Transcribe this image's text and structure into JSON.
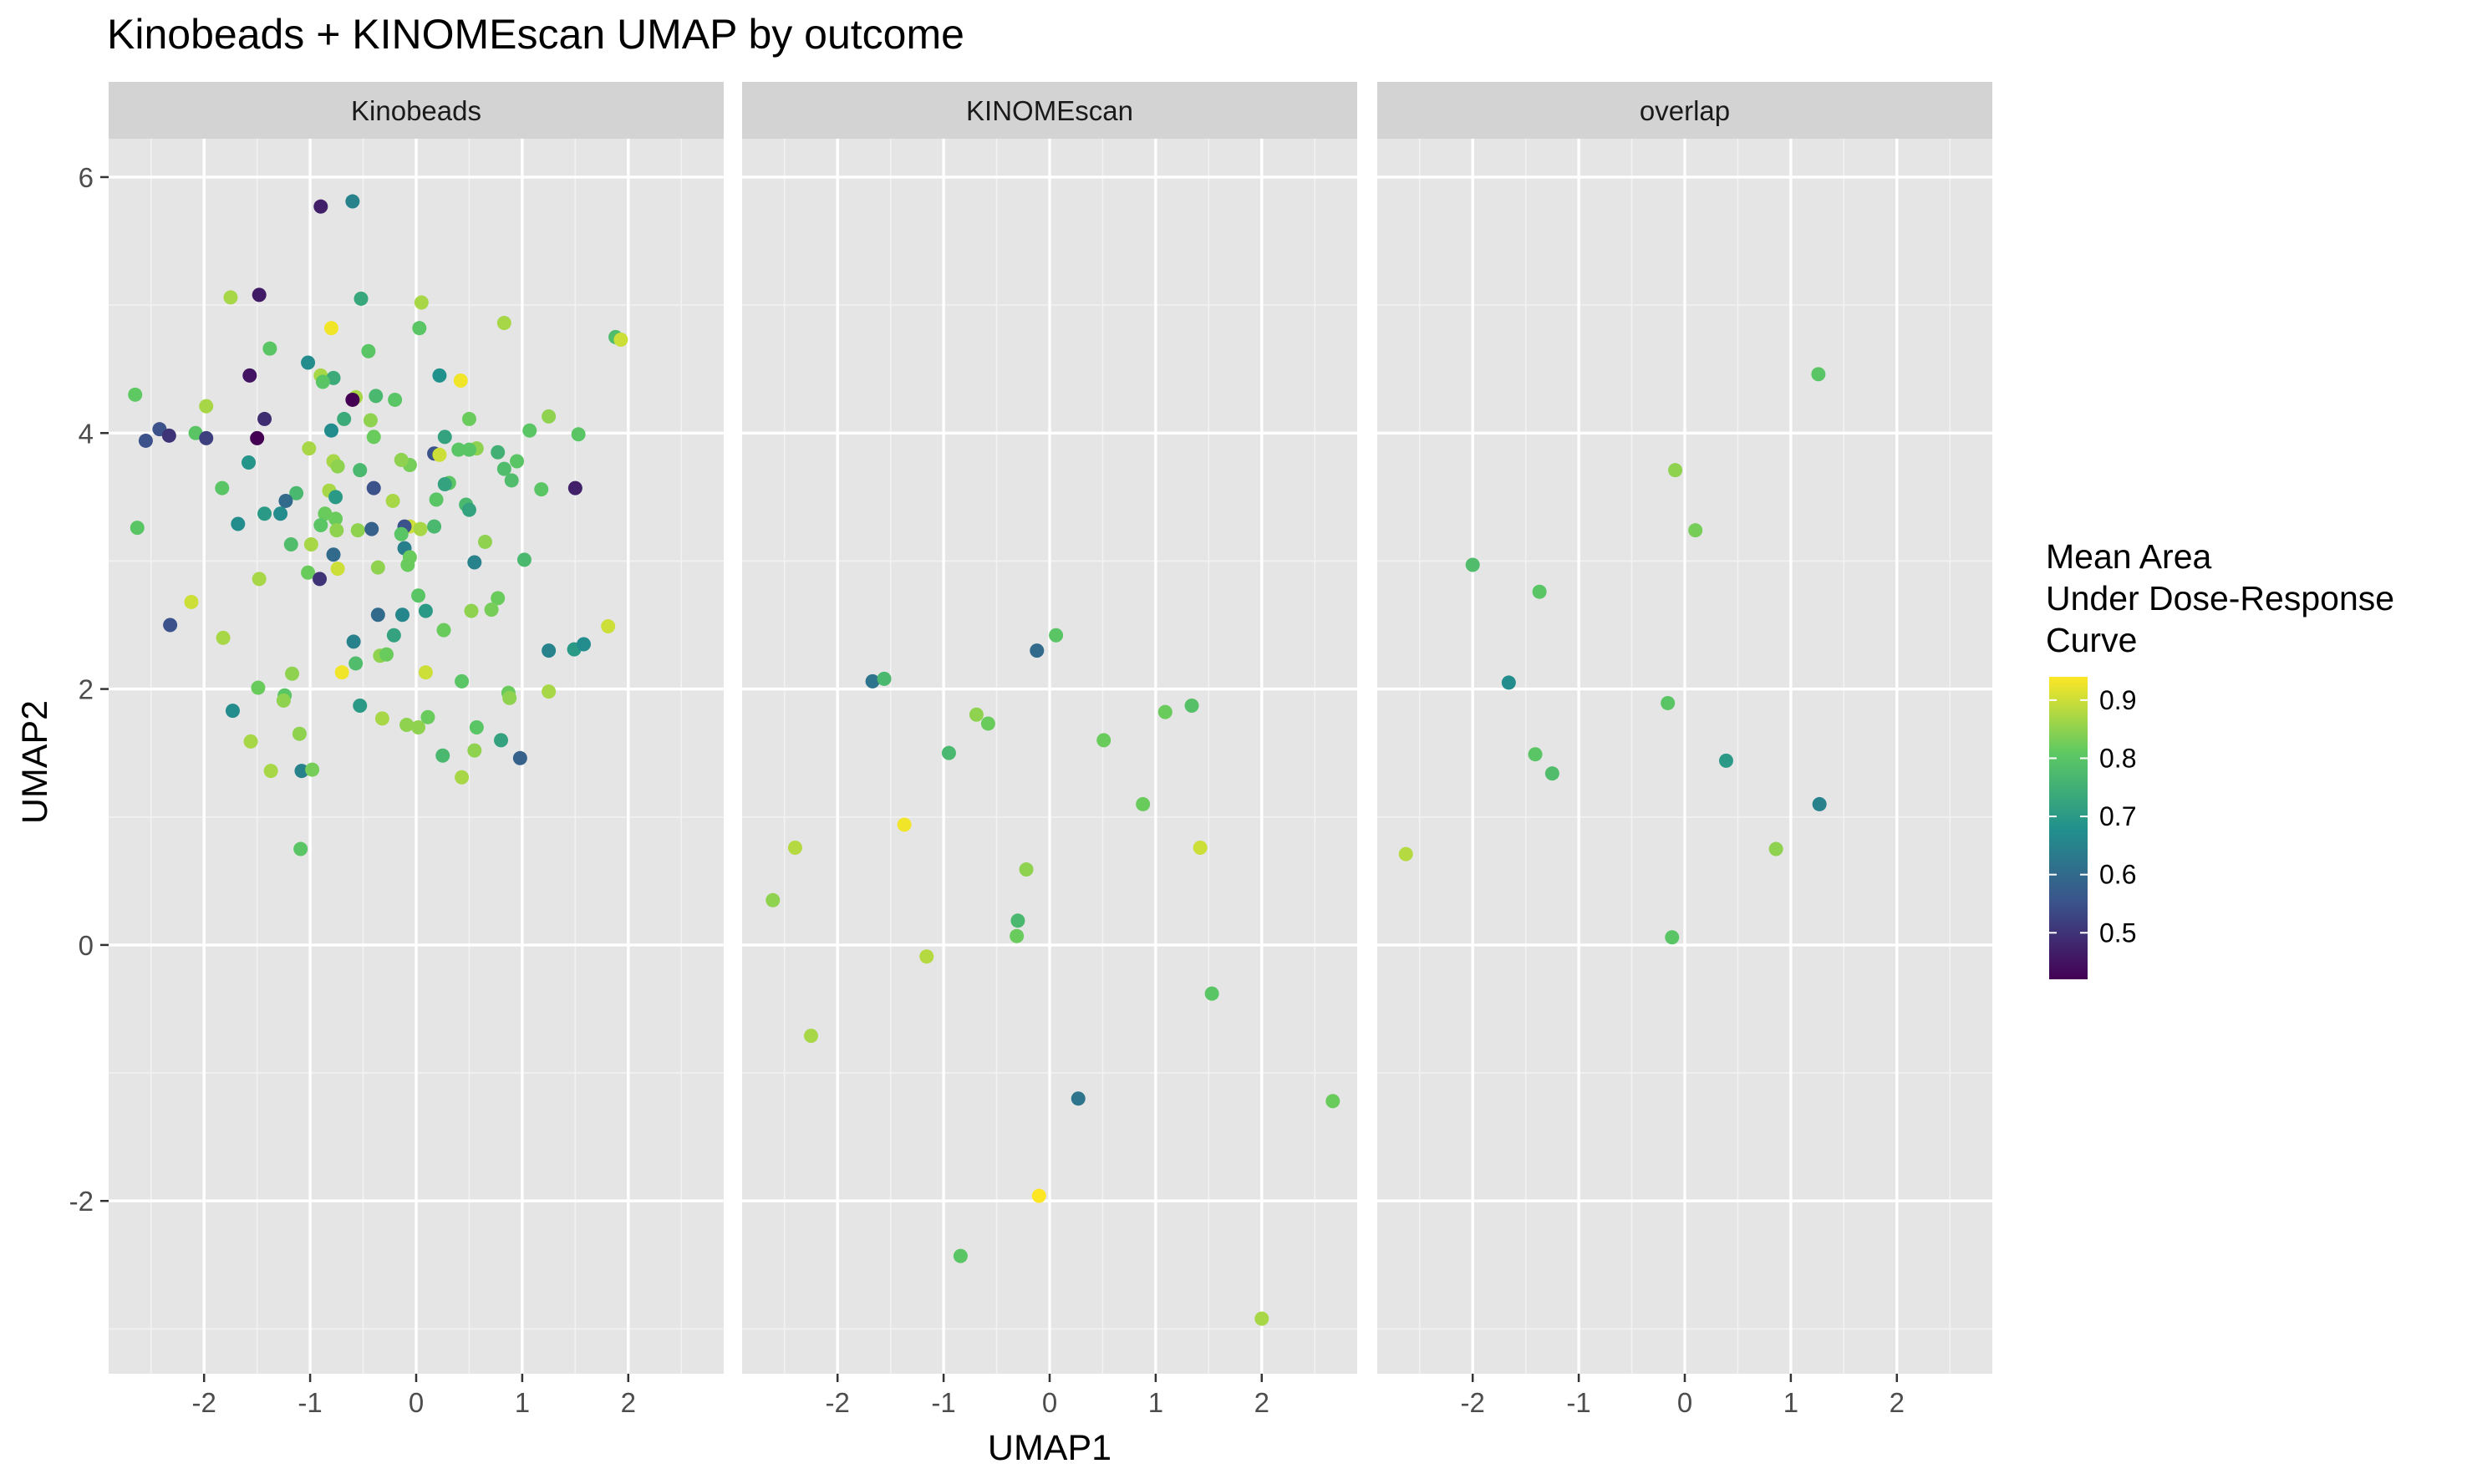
{
  "chart_data": {
    "type": "scatter",
    "title": "Kinobeads + KINOMEscan UMAP by outcome",
    "xlabel": "UMAP1",
    "ylabel": "UMAP2",
    "xlim": [
      -2.9,
      2.9
    ],
    "ylim": [
      -3.35,
      6.3
    ],
    "x_ticks": [
      -2,
      -1,
      0,
      1,
      2
    ],
    "x_tick_labels": [
      "-2",
      "-1",
      "0",
      "1",
      "2"
    ],
    "y_ticks": [
      -2,
      0,
      2,
      4,
      6
    ],
    "y_tick_labels": [
      "-2",
      "0",
      "2",
      "4",
      "6"
    ],
    "grid": true,
    "background": "#e5e5e5",
    "strip_color": "#d3d3d3",
    "legend": {
      "title_lines": [
        "Mean Area",
        "Under Dose-Response",
        "Curve"
      ],
      "position": "right",
      "colormap": "viridis",
      "range": [
        0.42,
        0.94
      ],
      "ticks": [
        0.5,
        0.6,
        0.7,
        0.8,
        0.9
      ],
      "tick_labels": [
        "0.5",
        "0.6",
        "0.7",
        "0.8",
        "0.9"
      ]
    },
    "facets": [
      {
        "name": "Kinobeads",
        "points": [
          [
            -0.9,
            5.77,
            0.47
          ],
          [
            -0.6,
            5.81,
            0.65
          ],
          [
            -1.48,
            5.08,
            0.46
          ],
          [
            -1.75,
            5.06,
            0.87
          ],
          [
            -0.52,
            5.05,
            0.73
          ],
          [
            0.05,
            5.02,
            0.87
          ],
          [
            0.83,
            4.86,
            0.87
          ],
          [
            -0.8,
            4.82,
            0.93
          ],
          [
            0.03,
            4.82,
            0.8
          ],
          [
            1.88,
            4.75,
            0.78
          ],
          [
            1.93,
            4.73,
            0.9
          ],
          [
            -1.38,
            4.66,
            0.8
          ],
          [
            -0.45,
            4.64,
            0.8
          ],
          [
            -1.02,
            4.55,
            0.67
          ],
          [
            -1.57,
            4.45,
            0.45
          ],
          [
            -0.9,
            4.45,
            0.87
          ],
          [
            -0.78,
            4.43,
            0.74
          ],
          [
            -0.88,
            4.4,
            0.8
          ],
          [
            0.22,
            4.45,
            0.68
          ],
          [
            0.42,
            4.41,
            0.93
          ],
          [
            -2.65,
            4.3,
            0.81
          ],
          [
            -0.57,
            4.28,
            0.87
          ],
          [
            -0.38,
            4.29,
            0.77
          ],
          [
            -0.2,
            4.26,
            0.8
          ],
          [
            -0.6,
            4.26,
            0.42
          ],
          [
            -1.98,
            4.21,
            0.87
          ],
          [
            -1.43,
            4.11,
            0.49
          ],
          [
            -0.68,
            4.11,
            0.74
          ],
          [
            -0.43,
            4.1,
            0.85
          ],
          [
            0.5,
            4.11,
            0.82
          ],
          [
            1.25,
            4.13,
            0.85
          ],
          [
            -2.42,
            4.03,
            0.55
          ],
          [
            -2.08,
            4.0,
            0.8
          ],
          [
            -0.8,
            4.02,
            0.67
          ],
          [
            1.07,
            4.02,
            0.8
          ],
          [
            1.53,
            3.99,
            0.8
          ],
          [
            -2.55,
            3.94,
            0.55
          ],
          [
            -2.33,
            3.98,
            0.5
          ],
          [
            -1.98,
            3.96,
            0.52
          ],
          [
            -1.5,
            3.96,
            0.42
          ],
          [
            -0.4,
            3.97,
            0.82
          ],
          [
            0.27,
            3.97,
            0.72
          ],
          [
            -1.01,
            3.88,
            0.87
          ],
          [
            0.4,
            3.87,
            0.8
          ],
          [
            0.57,
            3.88,
            0.85
          ],
          [
            0.5,
            3.87,
            0.8
          ],
          [
            0.77,
            3.85,
            0.75
          ],
          [
            0.17,
            3.84,
            0.55
          ],
          [
            0.22,
            3.83,
            0.9
          ],
          [
            -0.78,
            3.78,
            0.87
          ],
          [
            -0.06,
            3.75,
            0.83
          ],
          [
            -0.14,
            3.79,
            0.85
          ],
          [
            0.95,
            3.78,
            0.8
          ],
          [
            0.83,
            3.72,
            0.78
          ],
          [
            -0.74,
            3.74,
            0.85
          ],
          [
            -0.53,
            3.71,
            0.77
          ],
          [
            -1.58,
            3.77,
            0.69
          ],
          [
            0.31,
            3.61,
            0.8
          ],
          [
            0.27,
            3.6,
            0.72
          ],
          [
            -0.82,
            3.55,
            0.87
          ],
          [
            0.9,
            3.63,
            0.78
          ],
          [
            1.18,
            3.56,
            0.8
          ],
          [
            1.5,
            3.57,
            0.47
          ],
          [
            -1.83,
            3.57,
            0.8
          ],
          [
            -1.13,
            3.53,
            0.77
          ],
          [
            -0.4,
            3.57,
            0.55
          ],
          [
            0.19,
            3.48,
            0.8
          ],
          [
            -1.23,
            3.47,
            0.6
          ],
          [
            -0.76,
            3.5,
            0.7
          ],
          [
            -0.22,
            3.47,
            0.87
          ],
          [
            0.47,
            3.44,
            0.77
          ],
          [
            0.5,
            3.4,
            0.72
          ],
          [
            -1.43,
            3.37,
            0.7
          ],
          [
            -1.28,
            3.37,
            0.67
          ],
          [
            -0.86,
            3.37,
            0.82
          ],
          [
            -0.76,
            3.33,
            0.82
          ],
          [
            -2.63,
            3.26,
            0.8
          ],
          [
            -1.68,
            3.29,
            0.67
          ],
          [
            -0.9,
            3.28,
            0.8
          ],
          [
            -0.75,
            3.24,
            0.85
          ],
          [
            -0.06,
            3.27,
            0.9
          ],
          [
            0.04,
            3.25,
            0.87
          ],
          [
            0.17,
            3.27,
            0.77
          ],
          [
            -0.55,
            3.24,
            0.85
          ],
          [
            -0.42,
            3.25,
            0.58
          ],
          [
            -0.11,
            3.27,
            0.55
          ],
          [
            -0.14,
            3.21,
            0.8
          ],
          [
            0.65,
            3.15,
            0.85
          ],
          [
            -1.18,
            3.13,
            0.78
          ],
          [
            -0.99,
            3.13,
            0.87
          ],
          [
            -0.11,
            3.1,
            0.64
          ],
          [
            -0.78,
            3.05,
            0.6
          ],
          [
            -0.06,
            3.03,
            0.82
          ],
          [
            -0.36,
            2.95,
            0.85
          ],
          [
            -0.08,
            2.97,
            0.82
          ],
          [
            0.55,
            2.99,
            0.65
          ],
          [
            1.02,
            3.01,
            0.77
          ],
          [
            -1.48,
            2.86,
            0.87
          ],
          [
            -1.02,
            2.91,
            0.82
          ],
          [
            -0.91,
            2.86,
            0.5
          ],
          [
            -0.74,
            2.94,
            0.9
          ],
          [
            0.02,
            2.73,
            0.8
          ],
          [
            0.77,
            2.71,
            0.82
          ],
          [
            -2.12,
            2.68,
            0.9
          ],
          [
            -0.36,
            2.58,
            0.6
          ],
          [
            -0.13,
            2.58,
            0.66
          ],
          [
            0.09,
            2.61,
            0.7
          ],
          [
            0.52,
            2.61,
            0.85
          ],
          [
            0.71,
            2.62,
            0.83
          ],
          [
            -2.32,
            2.5,
            0.55
          ],
          [
            -1.82,
            2.4,
            0.87
          ],
          [
            -0.21,
            2.42,
            0.72
          ],
          [
            0.26,
            2.46,
            0.82
          ],
          [
            1.81,
            2.49,
            0.9
          ],
          [
            -0.59,
            2.37,
            0.65
          ],
          [
            -0.34,
            2.26,
            0.85
          ],
          [
            -0.28,
            2.27,
            0.82
          ],
          [
            -0.57,
            2.2,
            0.78
          ],
          [
            1.25,
            2.3,
            0.65
          ],
          [
            1.49,
            2.31,
            0.7
          ],
          [
            1.58,
            2.35,
            0.67
          ],
          [
            -0.7,
            2.13,
            0.93
          ],
          [
            0.09,
            2.13,
            0.9
          ],
          [
            -1.17,
            2.12,
            0.85
          ],
          [
            -1.49,
            2.01,
            0.82
          ],
          [
            -1.24,
            1.95,
            0.8
          ],
          [
            -1.25,
            1.91,
            0.85
          ],
          [
            0.43,
            2.06,
            0.8
          ],
          [
            0.87,
            1.97,
            0.82
          ],
          [
            0.88,
            1.93,
            0.85
          ],
          [
            1.25,
            1.98,
            0.87
          ],
          [
            -1.73,
            1.83,
            0.67
          ],
          [
            -0.53,
            1.87,
            0.7
          ],
          [
            0.11,
            1.78,
            0.82
          ],
          [
            -0.32,
            1.77,
            0.87
          ],
          [
            -0.09,
            1.72,
            0.85
          ],
          [
            0.02,
            1.7,
            0.85
          ],
          [
            0.57,
            1.7,
            0.8
          ],
          [
            -1.1,
            1.65,
            0.85
          ],
          [
            -1.56,
            1.59,
            0.87
          ],
          [
            0.8,
            1.6,
            0.72
          ],
          [
            0.55,
            1.52,
            0.85
          ],
          [
            0.25,
            1.48,
            0.77
          ],
          [
            0.98,
            1.46,
            0.58
          ],
          [
            -1.37,
            1.36,
            0.87
          ],
          [
            -1.08,
            1.36,
            0.65
          ],
          [
            -0.98,
            1.37,
            0.83
          ],
          [
            0.43,
            1.31,
            0.87
          ],
          [
            -1.09,
            0.75,
            0.8
          ]
        ]
      },
      {
        "name": "KINOMEscan",
        "points": [
          [
            0.06,
            2.42,
            0.8
          ],
          [
            -0.12,
            2.3,
            0.6
          ],
          [
            -1.67,
            2.06,
            0.62
          ],
          [
            -1.56,
            2.08,
            0.77
          ],
          [
            1.34,
            1.87,
            0.79
          ],
          [
            1.09,
            1.82,
            0.82
          ],
          [
            -0.69,
            1.8,
            0.85
          ],
          [
            -0.58,
            1.73,
            0.82
          ],
          [
            0.51,
            1.6,
            0.82
          ],
          [
            -0.95,
            1.5,
            0.77
          ],
          [
            0.88,
            1.1,
            0.82
          ],
          [
            -1.37,
            0.94,
            0.93
          ],
          [
            -2.4,
            0.76,
            0.88
          ],
          [
            1.42,
            0.76,
            0.9
          ],
          [
            -0.22,
            0.59,
            0.85
          ],
          [
            -2.61,
            0.35,
            0.85
          ],
          [
            -0.3,
            0.19,
            0.77
          ],
          [
            -0.31,
            0.07,
            0.82
          ],
          [
            -1.16,
            -0.09,
            0.88
          ],
          [
            1.53,
            -0.38,
            0.8
          ],
          [
            -2.25,
            -0.71,
            0.87
          ],
          [
            2.67,
            -1.22,
            0.82
          ],
          [
            0.27,
            -1.2,
            0.62
          ],
          [
            -0.1,
            -1.96,
            0.94
          ],
          [
            -0.84,
            -2.43,
            0.8
          ],
          [
            2.0,
            -2.92,
            0.87
          ]
        ]
      },
      {
        "name": "overlap",
        "points": [
          [
            1.26,
            4.46,
            0.8
          ],
          [
            -0.09,
            3.71,
            0.85
          ],
          [
            0.1,
            3.24,
            0.83
          ],
          [
            -2.0,
            2.97,
            0.78
          ],
          [
            -1.37,
            2.76,
            0.8
          ],
          [
            -1.66,
            2.05,
            0.67
          ],
          [
            -0.16,
            1.89,
            0.8
          ],
          [
            -1.41,
            1.49,
            0.8
          ],
          [
            0.39,
            1.44,
            0.7
          ],
          [
            -1.25,
            1.34,
            0.78
          ],
          [
            1.27,
            1.1,
            0.65
          ],
          [
            0.86,
            0.75,
            0.85
          ],
          [
            -2.63,
            0.71,
            0.88
          ],
          [
            -0.12,
            0.06,
            0.8
          ]
        ]
      }
    ]
  }
}
